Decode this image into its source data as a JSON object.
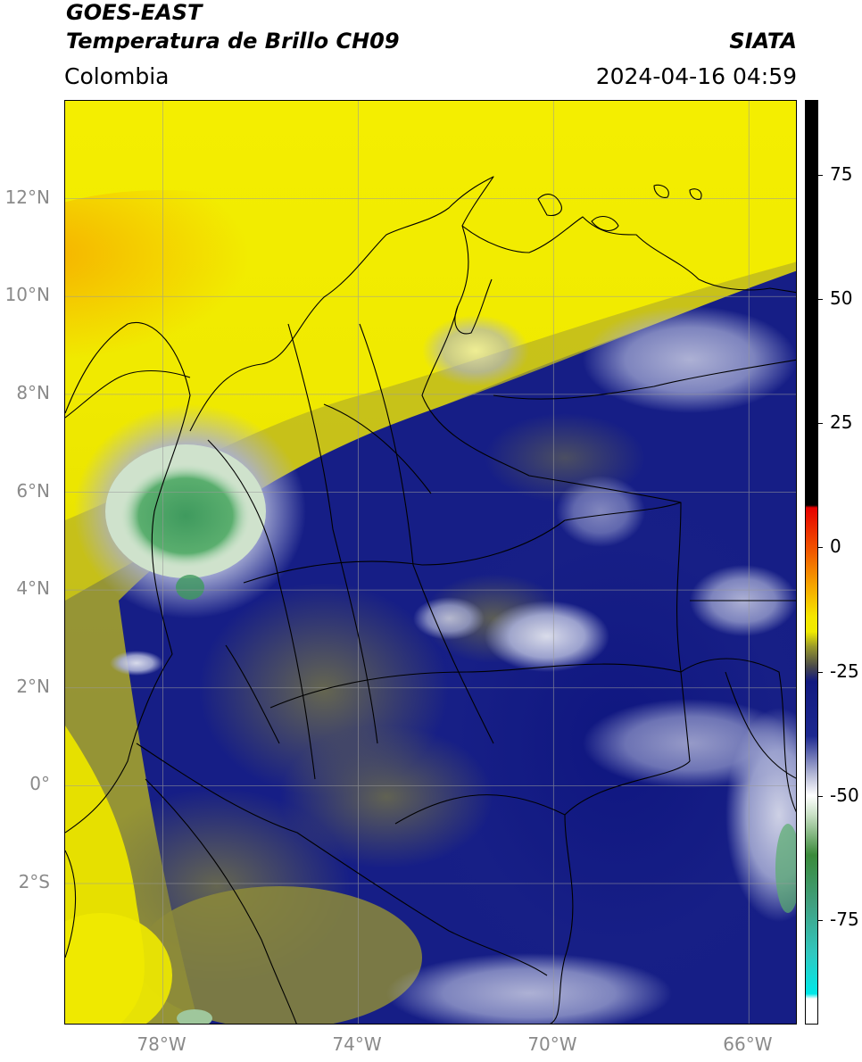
{
  "header": {
    "satellite": "GOES-EAST",
    "product": "Temperatura de Brillo CH09",
    "region": "Colombia",
    "agency": "SIATA",
    "datetime": "2024-04-16 04:59"
  },
  "map": {
    "lat_labels": [
      {
        "value": 12,
        "text": "12°N"
      },
      {
        "value": 10,
        "text": "10°N"
      },
      {
        "value": 8,
        "text": "8°N"
      },
      {
        "value": 6,
        "text": "6°N"
      },
      {
        "value": 4,
        "text": "4°N"
      },
      {
        "value": 2,
        "text": "2°N"
      },
      {
        "value": 0,
        "text": "0°"
      },
      {
        "value": -2,
        "text": "2°S"
      }
    ],
    "lon_labels": [
      {
        "value": -78,
        "text": "78°W"
      },
      {
        "value": -74,
        "text": "74°W"
      },
      {
        "value": -70,
        "text": "70°W"
      },
      {
        "value": -66,
        "text": "66°W"
      }
    ],
    "lat_range": [
      -4.9,
      14.0
    ],
    "lon_range": [
      -80.0,
      -65.0
    ],
    "grid": true,
    "colors": {
      "warm_yellow": "#f4ee00",
      "orange": "#f6b400",
      "olive": "#7b7b3a",
      "gray": "#5b5b5b",
      "navy": "#101880",
      "cold_white": "#e8e8f2",
      "green": "#3a9a5a"
    }
  },
  "colorbar": {
    "ticks": [
      {
        "value": 75,
        "text": "75"
      },
      {
        "value": 50,
        "text": "50"
      },
      {
        "value": 25,
        "text": "25"
      },
      {
        "value": 0,
        "text": "0"
      },
      {
        "value": -25,
        "text": "-25"
      },
      {
        "value": -50,
        "text": "-50"
      },
      {
        "value": -75,
        "text": "-75"
      }
    ],
    "range": [
      -96,
      90
    ]
  }
}
